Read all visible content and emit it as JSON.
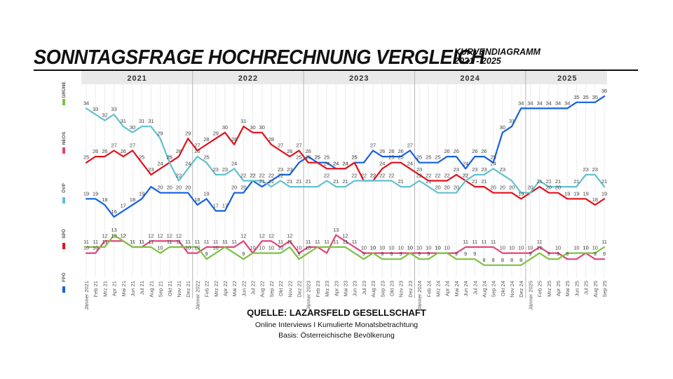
{
  "header": {
    "title": "SONNTAGSFRAGE HOCHRECHNUNG VERGLEICH",
    "subtitle_line1": "KURVENDIAGRAMM",
    "subtitle_line2": "2021 - 2025"
  },
  "source": {
    "title": "QUELLE: LAZARSFELD GESELLSCHAFT",
    "line1": "Online Interviews I Kumulierte Monatsbetrachtung",
    "line2": "Basis: Österreichische Bevölkerung"
  },
  "chart_data": {
    "type": "line",
    "title": "Sonntagsfrage Hochrechnung Vergleich",
    "years": [
      "2021",
      "2022",
      "2023",
      "2024",
      "2025"
    ],
    "x_tick_labels": [
      "Jänner 2021",
      "Feb 21",
      "Mrz 21",
      "Apr 21",
      "Mai 21",
      "Jun 21",
      "Jul 21",
      "Aug 21",
      "Sep 21",
      "Okt 21",
      "Nov 21",
      "Dez 21",
      "Jänner 2022",
      "Feb 22",
      "Mrz 22",
      "Apr 22",
      "Mai 22",
      "Jun 22",
      "Jul 22",
      "Aug 22",
      "Sep 22",
      "Okt 22",
      "Nov 22",
      "Dez 22",
      "Jänner 2023",
      "Feb 23",
      "Mrz 23",
      "Apr 23",
      "Mai 23",
      "Jun 23",
      "Jul 23",
      "Aug 23",
      "Sep 23",
      "Okt 23",
      "Nov 23",
      "Dez 23",
      "Jänner 2024",
      "Feb 24",
      "Mrz 24",
      "Apr 24",
      "Mai 24",
      "Jun 24",
      "Jul 24",
      "Aug 24",
      "Sep 24",
      "Okt 24",
      "Nov 24",
      "Dez 24",
      "Jänner 2025",
      "Feb 25",
      "Mrz 25",
      "Apr 25",
      "Mai 25",
      "Jun 25",
      "Jul 25",
      "Aug 25",
      "Sep 25"
    ],
    "legend": [
      {
        "name": "GRÜNE",
        "color": "#7DC242"
      },
      {
        "name": "NEOS",
        "color": "#E0457B"
      },
      {
        "name": "ÖVP",
        "color": "#62C1CC"
      },
      {
        "name": "SPÖ",
        "color": "#E3101C"
      },
      {
        "name": "FPÖ",
        "color": "#1560E0"
      }
    ],
    "series": [
      {
        "name": "FPÖ",
        "color": "#1560E0",
        "values": [
          19,
          19,
          18,
          16,
          17,
          18,
          19,
          21,
          20,
          20,
          20,
          20,
          18,
          19,
          17,
          17,
          20,
          20,
          22,
          21,
          22,
          23,
          23,
          25,
          26,
          25,
          25,
          24,
          24,
          25,
          25,
          27,
          26,
          26,
          26,
          27,
          25,
          25,
          25,
          26,
          26,
          24,
          26,
          26,
          25,
          30,
          31,
          34,
          34,
          34,
          34,
          34,
          34,
          35,
          35,
          35,
          36
        ],
        "labeled": [
          0,
          1,
          2,
          3,
          4,
          5,
          6,
          8,
          9,
          10,
          11,
          12,
          13,
          14,
          15,
          16,
          17,
          18,
          19,
          20,
          21,
          22,
          23,
          24,
          25,
          26,
          27,
          28,
          29,
          31,
          32,
          33,
          34,
          35,
          36,
          37,
          38,
          39,
          40,
          41,
          42,
          43,
          44,
          45,
          46,
          47,
          48,
          49,
          50,
          51,
          52,
          53,
          54,
          55,
          56
        ]
      },
      {
        "name": "SPÖ",
        "color": "#E3101C",
        "values": [
          25,
          26,
          26,
          27,
          26,
          27,
          25,
          23,
          24,
          25,
          26,
          29,
          27,
          28,
          29,
          30,
          28,
          31,
          30,
          30,
          28,
          27,
          26,
          27,
          25,
          25,
          24,
          24,
          24,
          25,
          22,
          22,
          24,
          25,
          25,
          24,
          23,
          22,
          22,
          22,
          23,
          22,
          21,
          21,
          20,
          20,
          20,
          19,
          20,
          21,
          20,
          20,
          19,
          19,
          19,
          18,
          19
        ],
        "labeled": [
          0,
          1,
          2,
          3,
          4,
          5,
          6,
          7,
          8,
          9,
          10,
          11,
          12,
          13,
          14,
          15,
          16,
          17,
          18,
          19,
          20,
          21,
          22,
          23,
          24,
          25,
          26,
          27,
          28,
          29,
          30,
          31,
          32,
          33,
          34,
          35,
          36,
          37,
          38,
          39,
          40,
          41,
          42,
          43,
          44,
          45,
          46,
          47,
          49,
          50,
          51,
          52,
          53,
          54,
          55,
          56
        ]
      },
      {
        "name": "ÖVP",
        "color": "#62C1CC",
        "values": [
          34,
          33,
          32,
          33,
          31,
          30,
          31,
          31,
          29,
          25,
          22,
          24,
          26,
          25,
          23,
          23,
          24,
          22,
          22,
          22,
          21,
          22,
          21,
          21,
          21,
          21,
          22,
          21,
          21,
          22,
          22,
          22,
          22,
          22,
          21,
          21,
          22,
          21,
          20,
          20,
          20,
          22,
          23,
          23,
          24,
          23,
          22,
          20,
          20,
          22,
          21,
          21,
          21,
          21,
          23,
          23,
          21
        ],
        "labeled": [
          0,
          1,
          2,
          3,
          4,
          5,
          6,
          7,
          8,
          9,
          10,
          11,
          12,
          13,
          14,
          15,
          16,
          17,
          18,
          19,
          20,
          21,
          22,
          23,
          24,
          26,
          27,
          28,
          29,
          31,
          32,
          33,
          34,
          36,
          37,
          38,
          39,
          40,
          41,
          42,
          43,
          44,
          45,
          48,
          50,
          51,
          53,
          54,
          55,
          56
        ]
      },
      {
        "name": "NEOS",
        "color": "#E0457B",
        "values": [
          10,
          10,
          12,
          12,
          12,
          11,
          11,
          12,
          12,
          12,
          12,
          10,
          10,
          11,
          11,
          11,
          11,
          12,
          10,
          12,
          12,
          11,
          12,
          10,
          11,
          11,
          10,
          13,
          12,
          11,
          10,
          10,
          10,
          10,
          10,
          10,
          10,
          10,
          10,
          10,
          10,
          11,
          11,
          11,
          11,
          10,
          10,
          10,
          10,
          11,
          10,
          10,
          9,
          9,
          10,
          9,
          9
        ],
        "labeled": [
          0,
          1,
          2,
          3,
          4,
          5,
          6,
          7,
          8,
          9,
          10,
          11,
          12,
          13,
          14,
          15,
          16,
          17,
          19,
          20,
          21,
          22,
          23,
          24,
          27,
          28,
          29,
          30,
          31,
          32,
          33,
          34,
          35,
          36,
          37,
          38,
          39,
          41,
          42,
          43,
          44,
          45,
          46,
          47,
          48,
          49,
          51,
          52,
          54,
          55,
          56
        ]
      },
      {
        "name": "GRÜNE",
        "color": "#7DC242",
        "values": [
          11,
          11,
          11,
          13,
          12,
          11,
          11,
          11,
          10,
          11,
          11,
          11,
          11,
          9,
          10,
          11,
          10,
          9,
          10,
          10,
          10,
          10,
          11,
          9,
          10,
          11,
          11,
          11,
          11,
          10,
          9,
          10,
          9,
          9,
          9,
          10,
          9,
          9,
          10,
          10,
          9,
          9,
          9,
          8,
          8,
          8,
          8,
          8,
          9,
          10,
          9,
          9,
          10,
          10,
          10,
          10,
          11
        ],
        "labeled": [
          0,
          1,
          2,
          3,
          4,
          5,
          6,
          7,
          8,
          9,
          10,
          11,
          12,
          13,
          14,
          15,
          17,
          18,
          19,
          20,
          21,
          22,
          23,
          24,
          25,
          26,
          27,
          28,
          30,
          31,
          32,
          33,
          34,
          35,
          36,
          37,
          38,
          40,
          41,
          42,
          43,
          44,
          45,
          46,
          47,
          48,
          49,
          50,
          51,
          53,
          54,
          55,
          56
        ]
      }
    ],
    "ylabel": "",
    "xlabel": "",
    "ylim": [
      6,
      38
    ],
    "grid": true,
    "legend_position": "left"
  }
}
